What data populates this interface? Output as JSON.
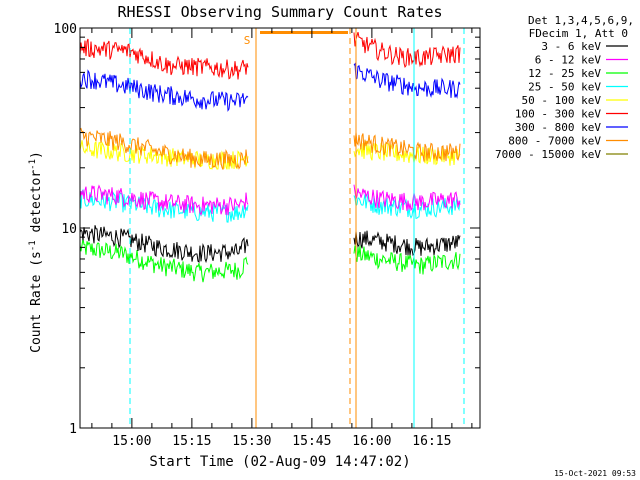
{
  "chart_data": {
    "type": "line",
    "title": "RHESSI Observing Summary Count Rates",
    "xlabel": "Start Time (02-Aug-09 14:47:02)",
    "ylabel_main": "Count Rate (s",
    "ylabel_sup": "-1",
    "ylabel_rest": " detector",
    "ylabel_end": ")",
    "yscale": "log",
    "ylim": [
      1,
      100
    ],
    "y_ticks": [
      {
        "v": 1,
        "label": "1"
      },
      {
        "v": 10,
        "label": "10"
      },
      {
        "v": 100,
        "label": "100"
      }
    ],
    "x_unit": "minutes after 14:47:02",
    "xlim": [
      0,
      100
    ],
    "x_ticks": [
      {
        "v": 12.97,
        "label": "15:00"
      },
      {
        "v": 27.97,
        "label": "15:15"
      },
      {
        "v": 42.97,
        "label": "15:30"
      },
      {
        "v": 57.97,
        "label": "15:45"
      },
      {
        "v": 72.97,
        "label": "16:00"
      },
      {
        "v": 87.97,
        "label": "16:15"
      }
    ],
    "legend_header": [
      "Det 1,3,4,5,6,9,",
      "FDecim 1, Att 0"
    ],
    "legend_position": "top-right-outside",
    "footer_date": "15-Oct-2021 09:53",
    "saa_marker": "S",
    "series": [
      {
        "name": "3 - 6 keV",
        "color": "#000000",
        "seg1": {
          "x": [
            0,
            10,
            20,
            30,
            40,
            42
          ],
          "y": [
            9.5,
            9.0,
            8.0,
            7.5,
            7.6,
            8.5
          ]
        },
        "seg2": {
          "x": [
            68.5,
            75,
            85,
            95
          ],
          "y": [
            9.0,
            8.6,
            8.0,
            8.5
          ]
        }
      },
      {
        "name": "6 - 12 keV",
        "color": "#ff00ff",
        "seg1": {
          "x": [
            0,
            10,
            20,
            30,
            40,
            42
          ],
          "y": [
            15,
            14.5,
            13.5,
            13,
            13,
            14
          ]
        },
        "seg2": {
          "x": [
            68.5,
            75,
            85,
            95
          ],
          "y": [
            15,
            14,
            13.5,
            14
          ]
        }
      },
      {
        "name": "12 - 25 keV",
        "color": "#00ff00",
        "seg1": {
          "x": [
            0,
            10,
            20,
            30,
            40,
            42
          ],
          "y": [
            8.0,
            7.5,
            6.5,
            6.0,
            6.2,
            7.0
          ]
        },
        "seg2": {
          "x": [
            68.5,
            75,
            85,
            95
          ],
          "y": [
            7.5,
            7.0,
            6.5,
            7.0
          ]
        }
      },
      {
        "name": "25 - 50 keV",
        "color": "#00ffff",
        "seg1": {
          "x": [
            0,
            10,
            20,
            30,
            40,
            42
          ],
          "y": [
            14,
            13.5,
            12.5,
            12,
            12,
            13
          ]
        },
        "seg2": {
          "x": [
            68.5,
            75,
            85,
            95
          ],
          "y": [
            14,
            13,
            12.5,
            13
          ]
        }
      },
      {
        "name": "50 - 100 keV",
        "color": "#ffff00",
        "seg1": {
          "x": [
            0,
            10,
            20,
            30,
            40,
            42
          ],
          "y": [
            25,
            24,
            23,
            22,
            22,
            23
          ]
        },
        "seg2": {
          "x": [
            68.5,
            75,
            85,
            95
          ],
          "y": [
            25,
            24,
            23,
            23
          ]
        }
      },
      {
        "name": "100 - 300 keV",
        "color": "#ff0000",
        "seg1": {
          "x": [
            0,
            12,
            15,
            22,
            30,
            40,
            42
          ],
          "y": [
            80,
            77,
            74,
            65,
            64,
            62,
            65
          ]
        },
        "seg2": {
          "x": [
            68.5,
            70,
            75,
            80,
            85,
            95
          ],
          "y": [
            88,
            85,
            77,
            72,
            71,
            75
          ]
        }
      },
      {
        "name": "300 - 800 keV",
        "color": "#0000ff",
        "seg1": {
          "x": [
            0,
            10,
            20,
            30,
            40,
            42
          ],
          "y": [
            57,
            52,
            47,
            44,
            43,
            45
          ]
        },
        "seg2": {
          "x": [
            68.5,
            75,
            85,
            95
          ],
          "y": [
            62,
            55,
            50,
            50
          ]
        }
      },
      {
        "name": "800 - 7000 keV",
        "color": "#ff8c00",
        "seg1": {
          "x": [
            0,
            10,
            20,
            30,
            40,
            42
          ],
          "y": [
            29,
            27,
            24,
            22,
            22,
            23
          ]
        },
        "seg2": {
          "x": [
            68.5,
            75,
            85,
            95
          ],
          "y": [
            28,
            26,
            24,
            24
          ]
        }
      },
      {
        "name": "7000 - 15000 keV",
        "color": "#808000",
        "seg1": {
          "x": [],
          "y": []
        },
        "seg2": {
          "x": [],
          "y": []
        }
      }
    ],
    "flat_segment": {
      "color": "#ff8c00",
      "x": [
        45,
        67
      ],
      "y": 95
    },
    "vlines": [
      {
        "x": 0,
        "color": "#00ffff",
        "style": "solid"
      },
      {
        "x": 12.5,
        "color": "#00ffff",
        "style": "dashed"
      },
      {
        "x": 44,
        "color": "#ff8c00",
        "style": "solid"
      },
      {
        "x": 67.5,
        "color": "#ff8c00",
        "style": "dashed"
      },
      {
        "x": 69,
        "color": "#ff8c00",
        "style": "solid"
      },
      {
        "x": 83.5,
        "color": "#00ffff",
        "style": "solid"
      },
      {
        "x": 96,
        "color": "#00ffff",
        "style": "dashed"
      }
    ]
  }
}
